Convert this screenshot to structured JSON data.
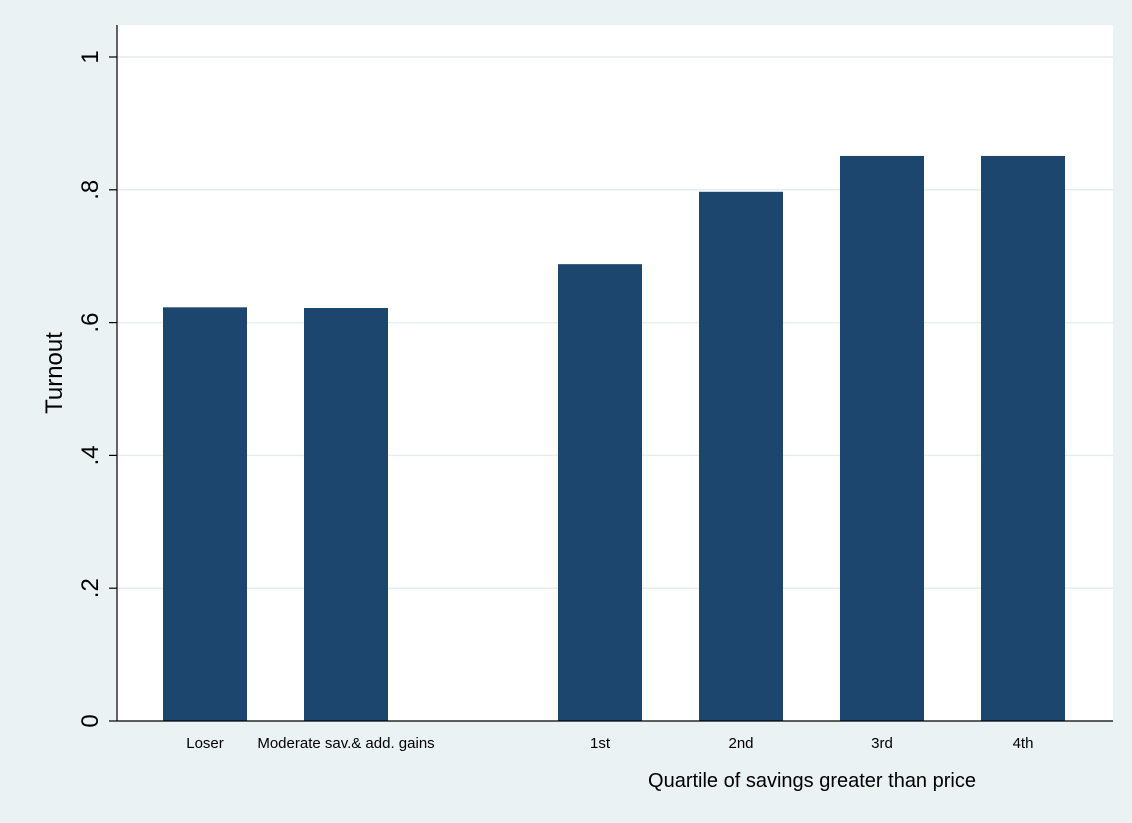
{
  "chart_data": {
    "type": "bar",
    "categories": [
      "Loser",
      "Moderate sav.& add. gains",
      "1st",
      "2nd",
      "3rd",
      "4th"
    ],
    "values": [
      0.623,
      0.622,
      0.688,
      0.797,
      0.851,
      0.851
    ],
    "ylabel": "Turnout",
    "group_label": "Quartile of savings greater than price",
    "ylim": [
      0,
      1
    ],
    "yticks": [
      0,
      0.2,
      0.4,
      0.6,
      0.8,
      1
    ],
    "ytick_labels": [
      "0",
      ".2",
      ".4",
      ".6",
      ".8",
      "1"
    ],
    "grid": true,
    "colors": {
      "bar": "#1c466e",
      "plot_background": "#ffffff",
      "page_background": "#eaf2f3",
      "grid": "#e6eef0"
    }
  }
}
